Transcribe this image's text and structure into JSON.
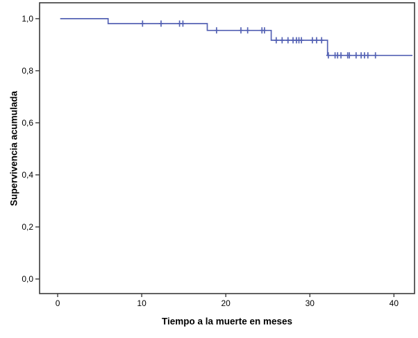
{
  "chart_data": {
    "type": "line",
    "subtype": "kaplan-meier-step-curve",
    "title": "",
    "xlabel": "Tiempo a la muerte en meses",
    "ylabel": "Supervivencia acumulada",
    "xlim": [
      -2.15,
      42.45
    ],
    "ylim": [
      -0.056,
      1.061
    ],
    "grid": false,
    "legend": false,
    "x_ticks": {
      "values": [
        0,
        10,
        20,
        30,
        40
      ],
      "labels": [
        "0",
        "10",
        "20",
        "30",
        "40"
      ]
    },
    "y_ticks": {
      "values": [
        0.0,
        0.2,
        0.4,
        0.6,
        0.8,
        1.0
      ],
      "labels": [
        "0,0",
        "0,2",
        "0,4",
        "0,6",
        "0,8",
        "1,0"
      ]
    },
    "colors": {
      "line": "#5462b4",
      "axis": "#3a3a3a",
      "text": "#000000",
      "background": "#ffffff"
    },
    "series": [
      {
        "name": "Supervivencia acumulada",
        "color": "#5462b4",
        "step_points": [
          [
            0.3,
            1.0
          ],
          [
            6.0,
            1.0
          ],
          [
            6.0,
            0.981
          ],
          [
            17.8,
            0.981
          ],
          [
            17.8,
            0.955
          ],
          [
            25.4,
            0.955
          ],
          [
            25.4,
            0.917
          ],
          [
            32.1,
            0.917
          ],
          [
            32.1,
            0.859
          ],
          [
            42.2,
            0.859
          ]
        ],
        "censored_points": [
          [
            10.1,
            0.981
          ],
          [
            12.3,
            0.981
          ],
          [
            14.5,
            0.981
          ],
          [
            14.9,
            0.981
          ],
          [
            18.9,
            0.955
          ],
          [
            21.8,
            0.955
          ],
          [
            22.6,
            0.955
          ],
          [
            24.3,
            0.955
          ],
          [
            24.6,
            0.955
          ],
          [
            26.0,
            0.917
          ],
          [
            26.7,
            0.917
          ],
          [
            27.4,
            0.917
          ],
          [
            28.0,
            0.917
          ],
          [
            28.4,
            0.917
          ],
          [
            28.7,
            0.917
          ],
          [
            29.0,
            0.917
          ],
          [
            30.3,
            0.917
          ],
          [
            30.8,
            0.917
          ],
          [
            31.4,
            0.917
          ],
          [
            32.2,
            0.859
          ],
          [
            33.0,
            0.859
          ],
          [
            33.3,
            0.859
          ],
          [
            33.7,
            0.859
          ],
          [
            34.5,
            0.859
          ],
          [
            34.7,
            0.859
          ],
          [
            35.5,
            0.859
          ],
          [
            36.1,
            0.859
          ],
          [
            36.5,
            0.859
          ],
          [
            36.9,
            0.859
          ],
          [
            37.8,
            0.859
          ]
        ]
      }
    ]
  }
}
